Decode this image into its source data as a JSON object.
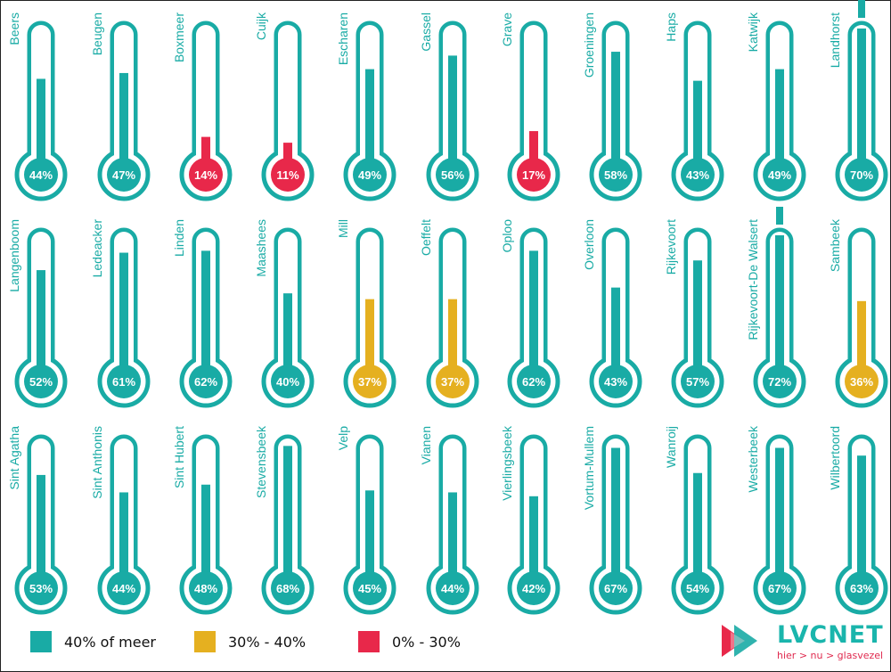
{
  "colors": {
    "high": "#19aba5",
    "mid": "#e5b020",
    "low": "#e8284a",
    "bulb_fill": "#19aba5",
    "text": "#ffffff"
  },
  "chart_data": {
    "type": "bar",
    "title": "",
    "categories": [
      "Beers",
      "Beugen",
      "Boxmeer",
      "Cuijk",
      "Escharen",
      "Gassel",
      "Grave",
      "Groeningen",
      "Haps",
      "Katwijk",
      "Landhorst",
      "Langenboom",
      "Ledeacker",
      "Linden",
      "Maashees",
      "Mill",
      "Oeffelt",
      "Oploo",
      "Overloon",
      "Rijkevoort",
      "Rijkevoort-De Walsert",
      "Sambeek",
      "Sint Agatha",
      "Sint Anthonis",
      "Sint Hubert",
      "Stevensbeek",
      "Velp",
      "Vianen",
      "Vierlingsbeek",
      "Vortum-Mullem",
      "Wanroij",
      "Westerbeek",
      "Wilbertoord"
    ],
    "values": [
      44,
      47,
      14,
      11,
      49,
      56,
      17,
      58,
      43,
      49,
      70,
      52,
      61,
      62,
      40,
      37,
      37,
      62,
      43,
      57,
      72,
      36,
      53,
      44,
      48,
      68,
      45,
      44,
      42,
      67,
      54,
      67,
      63
    ],
    "labels": [
      "44%",
      "47%",
      "14%",
      "11%",
      "49%",
      "56%",
      "17%",
      "58%",
      "43%",
      "49%",
      "70%",
      "52%",
      "61%",
      "62%",
      "40%",
      "37%",
      "37%",
      "62%",
      "43%",
      "57%",
      "72%",
      "36%",
      "53%",
      "44%",
      "48%",
      "68%",
      "45%",
      "44%",
      "42%",
      "67%",
      "54%",
      "67%",
      "63%"
    ],
    "ylim": [
      0,
      70
    ],
    "legend": {
      "placement": "bottom-left",
      "items": [
        {
          "label": "40% of meer",
          "range": [
            40,
            100
          ],
          "color": "#19aba5"
        },
        {
          "label": "30% - 40%",
          "range": [
            30,
            40
          ],
          "color": "#e5b020"
        },
        {
          "label": "0% - 30%",
          "range": [
            0,
            30
          ],
          "color": "#e8284a"
        }
      ]
    }
  },
  "logo": {
    "name": "LVCNET",
    "tagline": "hier > nu > glasvezel"
  }
}
